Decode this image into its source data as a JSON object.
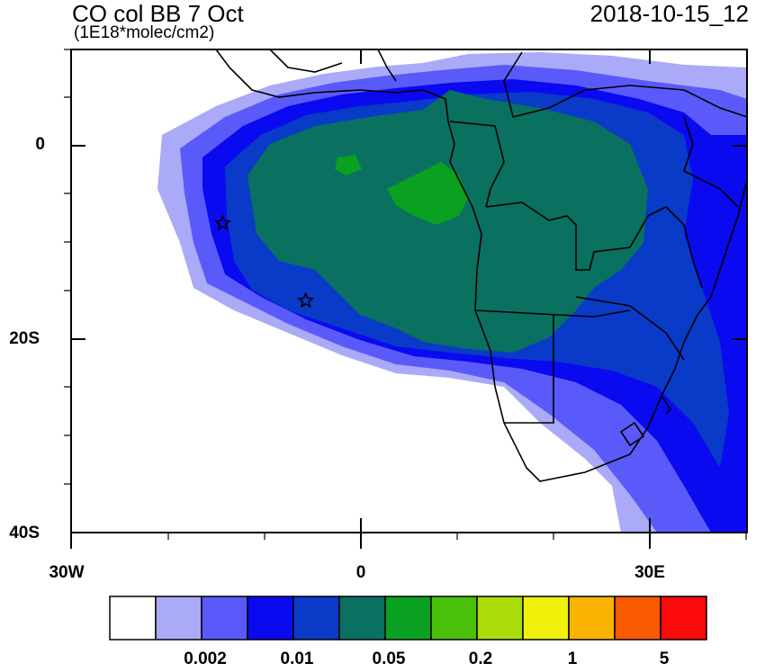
{
  "header": {
    "title": "CO col BB 7 Oct",
    "units": "(1E18*molec/cm2)",
    "datetime": "2018-10-15_12"
  },
  "axes": {
    "lat_labels": [
      "0",
      "20S",
      "40S"
    ],
    "lon_labels": [
      "30W",
      "0",
      "30E"
    ],
    "lon_range": [
      -30,
      40
    ],
    "lat_range": [
      -40,
      10
    ]
  },
  "markers": {
    "stars": [
      {
        "lon": -14.3,
        "lat": -8.0
      },
      {
        "lon": -5.7,
        "lat": -16.0
      }
    ]
  },
  "colorbar": {
    "colors": [
      "#ffffff",
      "#aaaaf8",
      "#5a5afa",
      "#0a0af0",
      "#0a3ac8",
      "#0a7060",
      "#0aa020",
      "#4ac00a",
      "#aadc0a",
      "#f0f00a",
      "#fab400",
      "#fa5a00",
      "#fa0a0a"
    ],
    "labels": [
      "0.002",
      "0.01",
      "0.05",
      "0.2",
      "1",
      "5"
    ]
  }
}
